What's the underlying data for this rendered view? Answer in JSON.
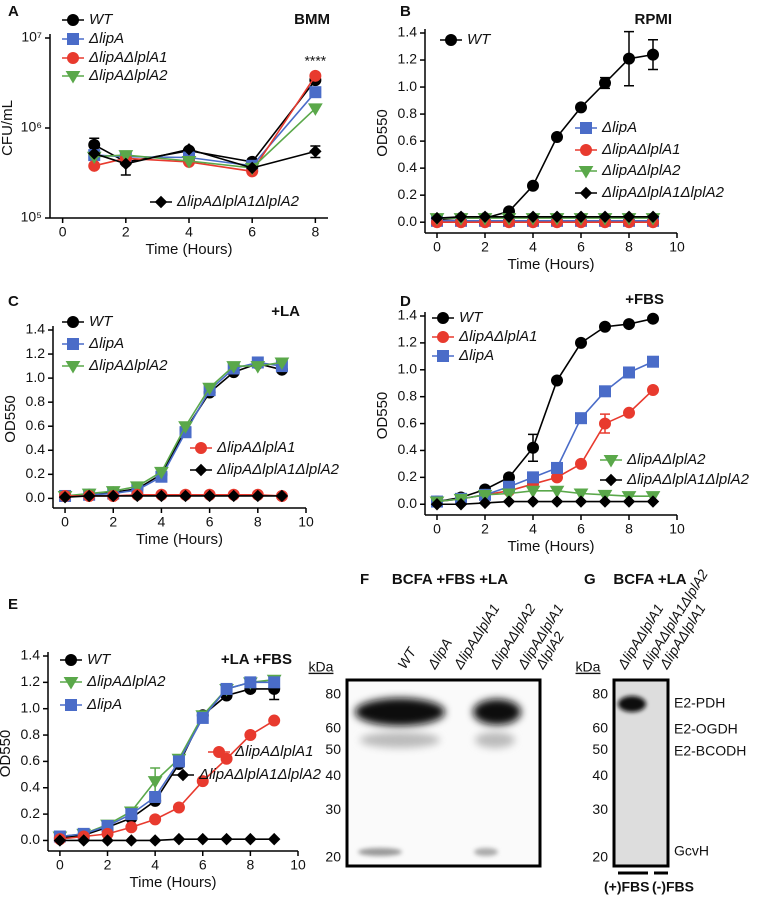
{
  "chart_data": [
    {
      "type": "line",
      "label": "A",
      "title": "BMM",
      "x_label": "Time (Hours)",
      "y_label": "CFU/mL",
      "log_y": true,
      "x": [
        1,
        2,
        4,
        6,
        8
      ],
      "xlim": [
        -0.4,
        8.4
      ],
      "xticks": [
        0,
        2,
        4,
        6,
        8
      ],
      "ylim": [
        100000,
        10000000
      ],
      "yticks": [
        {
          "value": 100000,
          "label": "10⁵"
        },
        {
          "value": 1000000,
          "label": "10⁶"
        },
        {
          "value": 10000000,
          "label": "10⁷"
        }
      ],
      "annotation": "****",
      "grid": false,
      "series": [
        {
          "name": "WT",
          "color": "#000000",
          "marker": "circle",
          "values": [
            650000,
            420000,
            560000,
            420000,
            3400000
          ],
          "errors": [
            120000,
            120000,
            null,
            null,
            null
          ]
        },
        {
          "name": "ΔlipA",
          "color": "#4a6cc8",
          "marker": "square",
          "values": [
            500000,
            480000,
            470000,
            380000,
            2500000
          ]
        },
        {
          "name": "ΔlipAΔlplA1",
          "color": "#e83a2e",
          "marker": "circle",
          "values": [
            380000,
            460000,
            420000,
            330000,
            3800000
          ]
        },
        {
          "name": "ΔlipAΔlplA2",
          "color": "#5aa84a",
          "marker": "triangle",
          "values": [
            480000,
            500000,
            430000,
            360000,
            1650000
          ]
        },
        {
          "name": "ΔlipAΔlplA1ΔlplA2",
          "color": "#000000",
          "marker": "diamond",
          "values": [
            520000,
            400000,
            580000,
            360000,
            550000
          ],
          "errors": [
            null,
            null,
            null,
            null,
            80000
          ]
        }
      ]
    },
    {
      "type": "line",
      "label": "B",
      "title": "RPMI",
      "x_label": "Time (Hours)",
      "y_label": "OD550",
      "x": [
        0,
        1,
        2,
        3,
        4,
        5,
        6,
        7,
        8,
        9
      ],
      "xlim": [
        -0.5,
        10
      ],
      "xticks": [
        0,
        2,
        4,
        6,
        8,
        10
      ],
      "ylim": [
        -0.08,
        1.4
      ],
      "yticks": [
        {
          "value": 0,
          "label": "0.0"
        },
        0.2,
        0.4,
        0.6,
        0.8,
        {
          "value": 1,
          "label": "1.0"
        },
        1.2,
        1.4
      ],
      "grid": false,
      "series": [
        {
          "name": "WT",
          "color": "#000000",
          "marker": "circle",
          "values": [
            0.02,
            0.03,
            0.03,
            0.08,
            0.27,
            0.63,
            0.85,
            1.03,
            1.21,
            1.24
          ],
          "errors": [
            null,
            null,
            null,
            null,
            null,
            null,
            null,
            0.04,
            0.2,
            0.11
          ]
        },
        {
          "name": "ΔlipA",
          "color": "#4a6cc8",
          "marker": "square",
          "values": [
            0.01,
            0.01,
            0.01,
            0.01,
            0.01,
            0.01,
            0.01,
            0.01,
            0.01,
            0.01
          ]
        },
        {
          "name": "ΔlipAΔlplA1",
          "color": "#e83a2e",
          "marker": "circle",
          "values": [
            0,
            0,
            0,
            0,
            0,
            0,
            0,
            0,
            0,
            0
          ]
        },
        {
          "name": "ΔlipAΔlplA2",
          "color": "#5aa84a",
          "marker": "triangle",
          "values": [
            0.03,
            0.03,
            0.03,
            0.03,
            0.03,
            0.03,
            0.03,
            0.03,
            0.03,
            0.03
          ]
        },
        {
          "name": "ΔlipAΔlplA1ΔlplA2",
          "color": "#000000",
          "marker": "diamond",
          "values": [
            0.03,
            0.04,
            0.04,
            0.04,
            0.04,
            0.04,
            0.04,
            0.04,
            0.04,
            0.04
          ]
        }
      ]
    },
    {
      "type": "line",
      "label": "C",
      "title": "+LA",
      "x_label": "Time (Hours)",
      "y_label": "OD550",
      "x": [
        0,
        1,
        2,
        3,
        4,
        5,
        6,
        7,
        8,
        9
      ],
      "xlim": [
        -0.5,
        10
      ],
      "xticks": [
        0,
        2,
        4,
        6,
        8,
        10
      ],
      "ylim": [
        -0.08,
        1.4
      ],
      "yticks": [
        {
          "value": 0,
          "label": "0.0"
        },
        0.2,
        0.4,
        0.6,
        0.8,
        {
          "value": 1,
          "label": "1.0"
        },
        1.2,
        1.4
      ],
      "grid": false,
      "series": [
        {
          "name": "WT",
          "color": "#000000",
          "marker": "circle",
          "values": [
            0.02,
            0.03,
            0.05,
            0.08,
            0.2,
            0.57,
            0.88,
            1.05,
            1.12,
            1.07
          ]
        },
        {
          "name": "ΔlipA",
          "color": "#4a6cc8",
          "marker": "square",
          "values": [
            0.02,
            0.03,
            0.04,
            0.07,
            0.18,
            0.55,
            0.9,
            1.08,
            1.13,
            1.1
          ]
        },
        {
          "name": "ΔlipAΔlplA2",
          "color": "#5aa84a",
          "marker": "triangle",
          "values": [
            0.02,
            0.04,
            0.06,
            0.1,
            0.22,
            0.6,
            0.92,
            1.1,
            1.1,
            1.13
          ]
        },
        {
          "name": "ΔlipAΔlplA1",
          "color": "#e83a2e",
          "marker": "circle",
          "values": [
            0.02,
            0.02,
            0.02,
            0.03,
            0.03,
            0.03,
            0.03,
            0.03,
            0.03,
            0.02
          ]
        },
        {
          "name": "ΔlipAΔlplA1ΔlplA2",
          "color": "#000000",
          "marker": "diamond",
          "values": [
            0.01,
            0.02,
            0.02,
            0.02,
            0.02,
            0.02,
            0.02,
            0.02,
            0.02,
            0.02
          ]
        }
      ]
    },
    {
      "type": "line",
      "label": "D",
      "title": "+FBS",
      "x_label": "Time (Hours)",
      "y_label": "OD550",
      "x": [
        0,
        1,
        2,
        3,
        4,
        5,
        6,
        7,
        8,
        9
      ],
      "xlim": [
        -0.5,
        10
      ],
      "xticks": [
        0,
        2,
        4,
        6,
        8,
        10
      ],
      "ylim": [
        -0.08,
        1.4
      ],
      "yticks": [
        {
          "value": 0,
          "label": "0.0"
        },
        0.2,
        0.4,
        0.6,
        0.8,
        {
          "value": 1,
          "label": "1.0"
        },
        1.2,
        1.4
      ],
      "grid": false,
      "series": [
        {
          "name": "WT",
          "color": "#000000",
          "marker": "circle",
          "values": [
            0.02,
            0.05,
            0.11,
            0.2,
            0.42,
            0.92,
            1.2,
            1.32,
            1.34,
            1.38
          ],
          "errors": [
            null,
            null,
            null,
            null,
            0.1,
            null,
            null,
            null,
            null,
            null
          ]
        },
        {
          "name": "ΔlipAΔlplA1",
          "color": "#e83a2e",
          "marker": "circle",
          "values": [
            0.02,
            0.04,
            0.07,
            0.1,
            0.15,
            0.2,
            0.3,
            0.6,
            0.68,
            0.85
          ],
          "errors": [
            null,
            null,
            null,
            null,
            null,
            null,
            null,
            0.07,
            null,
            null
          ]
        },
        {
          "name": "ΔlipA",
          "color": "#4a6cc8",
          "marker": "square",
          "values": [
            0.02,
            0.04,
            0.07,
            0.13,
            0.2,
            0.27,
            0.64,
            0.84,
            0.98,
            1.06
          ]
        },
        {
          "name": "ΔlipAΔlplA2",
          "color": "#5aa84a",
          "marker": "triangle",
          "values": [
            0.02,
            0.04,
            0.07,
            0.08,
            0.1,
            0.1,
            0.08,
            0.07,
            0.06,
            0.06
          ]
        },
        {
          "name": "ΔlipAΔlplA1ΔlplA2",
          "color": "#000000",
          "marker": "diamond",
          "values": [
            0,
            0,
            0.01,
            0.02,
            0.02,
            0.02,
            0.02,
            0.02,
            0.02,
            0.02
          ]
        }
      ]
    },
    {
      "type": "line",
      "label": "E",
      "title": "+LA +FBS",
      "x_label": "Time (Hours)",
      "y_label": "OD550",
      "x": [
        0,
        1,
        2,
        3,
        4,
        5,
        6,
        7,
        8,
        9
      ],
      "xlim": [
        -0.5,
        10
      ],
      "xticks": [
        0,
        2,
        4,
        6,
        8,
        10
      ],
      "ylim": [
        -0.08,
        1.4
      ],
      "yticks": [
        {
          "value": 0,
          "label": "0.0"
        },
        0.2,
        0.4,
        0.6,
        0.8,
        {
          "value": 1,
          "label": "1.0"
        },
        1.2,
        1.4
      ],
      "grid": false,
      "series": [
        {
          "name": "WT",
          "color": "#000000",
          "marker": "circle",
          "values": [
            0.02,
            0.04,
            0.1,
            0.17,
            0.3,
            0.58,
            0.95,
            1.1,
            1.15,
            1.15
          ],
          "errors": [
            null,
            null,
            null,
            null,
            null,
            null,
            null,
            null,
            null,
            0.08
          ]
        },
        {
          "name": "ΔlipAΔlplA2",
          "color": "#5aa84a",
          "marker": "triangle",
          "values": [
            0.03,
            0.05,
            0.12,
            0.22,
            0.45,
            0.62,
            0.95,
            1.15,
            1.2,
            1.22
          ],
          "errors": [
            null,
            null,
            null,
            null,
            0.1,
            null,
            null,
            null,
            null,
            null
          ]
        },
        {
          "name": "ΔlipA",
          "color": "#4a6cc8",
          "marker": "square",
          "values": [
            0.03,
            0.05,
            0.11,
            0.2,
            0.33,
            0.6,
            0.93,
            1.15,
            1.2,
            1.2
          ]
        },
        {
          "name": "ΔlipAΔlplA1",
          "color": "#e83a2e",
          "marker": "circle",
          "values": [
            0.01,
            0.03,
            0.05,
            0.1,
            0.16,
            0.25,
            0.45,
            0.62,
            0.8,
            0.91
          ]
        },
        {
          "name": "ΔlipAΔlplA1ΔlplA2",
          "color": "#000000",
          "marker": "diamond",
          "values": [
            0,
            0,
            0,
            0,
            0,
            0.01,
            0.01,
            0.01,
            0.01,
            0.01
          ]
        }
      ]
    }
  ],
  "blots": [
    {
      "label": "F",
      "title": "BCFA +FBS +LA",
      "unit": "kDa",
      "lanes": [
        "WT",
        "ΔlipA",
        "ΔlipAΔlplA1",
        "ΔlipAΔlplA2",
        "ΔlipAΔlplA1",
        "ΔlplA2"
      ],
      "markers": [
        80,
        60,
        50,
        40,
        30,
        20
      ]
    },
    {
      "label": "G",
      "title": "BCFA +LA",
      "unit": "kDa",
      "lanes": [
        "ΔlipAΔlplA1",
        "ΔlipAΔlplA1ΔlplA2",
        "ΔlipAΔlplA1"
      ],
      "markers": [
        80,
        60,
        50,
        40,
        30,
        20
      ],
      "bands": [
        "E2-PDH",
        "E2-OGDH",
        "E2-BCODH",
        "GcvH"
      ],
      "groups": [
        "(+)FBS",
        "(-)FBS"
      ]
    }
  ]
}
